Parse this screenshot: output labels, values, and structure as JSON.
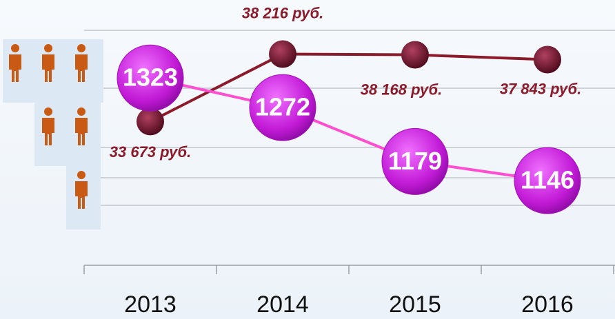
{
  "chart_data": {
    "type": "line",
    "categories": [
      "2013",
      "2014",
      "2015",
      "2016"
    ],
    "series": [
      {
        "name": "employees",
        "color": "#ff4fd0",
        "marker_color": "#c21ad6",
        "values": [
          1323,
          1272,
          1179,
          1146
        ]
      },
      {
        "name": "salary",
        "color": "#8b1a2a",
        "marker_color": "#7a1030",
        "axis": "y2",
        "values": [
          33673,
          38216,
          38168,
          37843
        ],
        "value_labels": [
          "33 673 руб.",
          "38 216 руб.",
          "38 168 руб.",
          "37 843 руб."
        ]
      }
    ],
    "ylim": [
      1000,
      1410
    ],
    "y2lim": [
      24000,
      40000
    ]
  }
}
